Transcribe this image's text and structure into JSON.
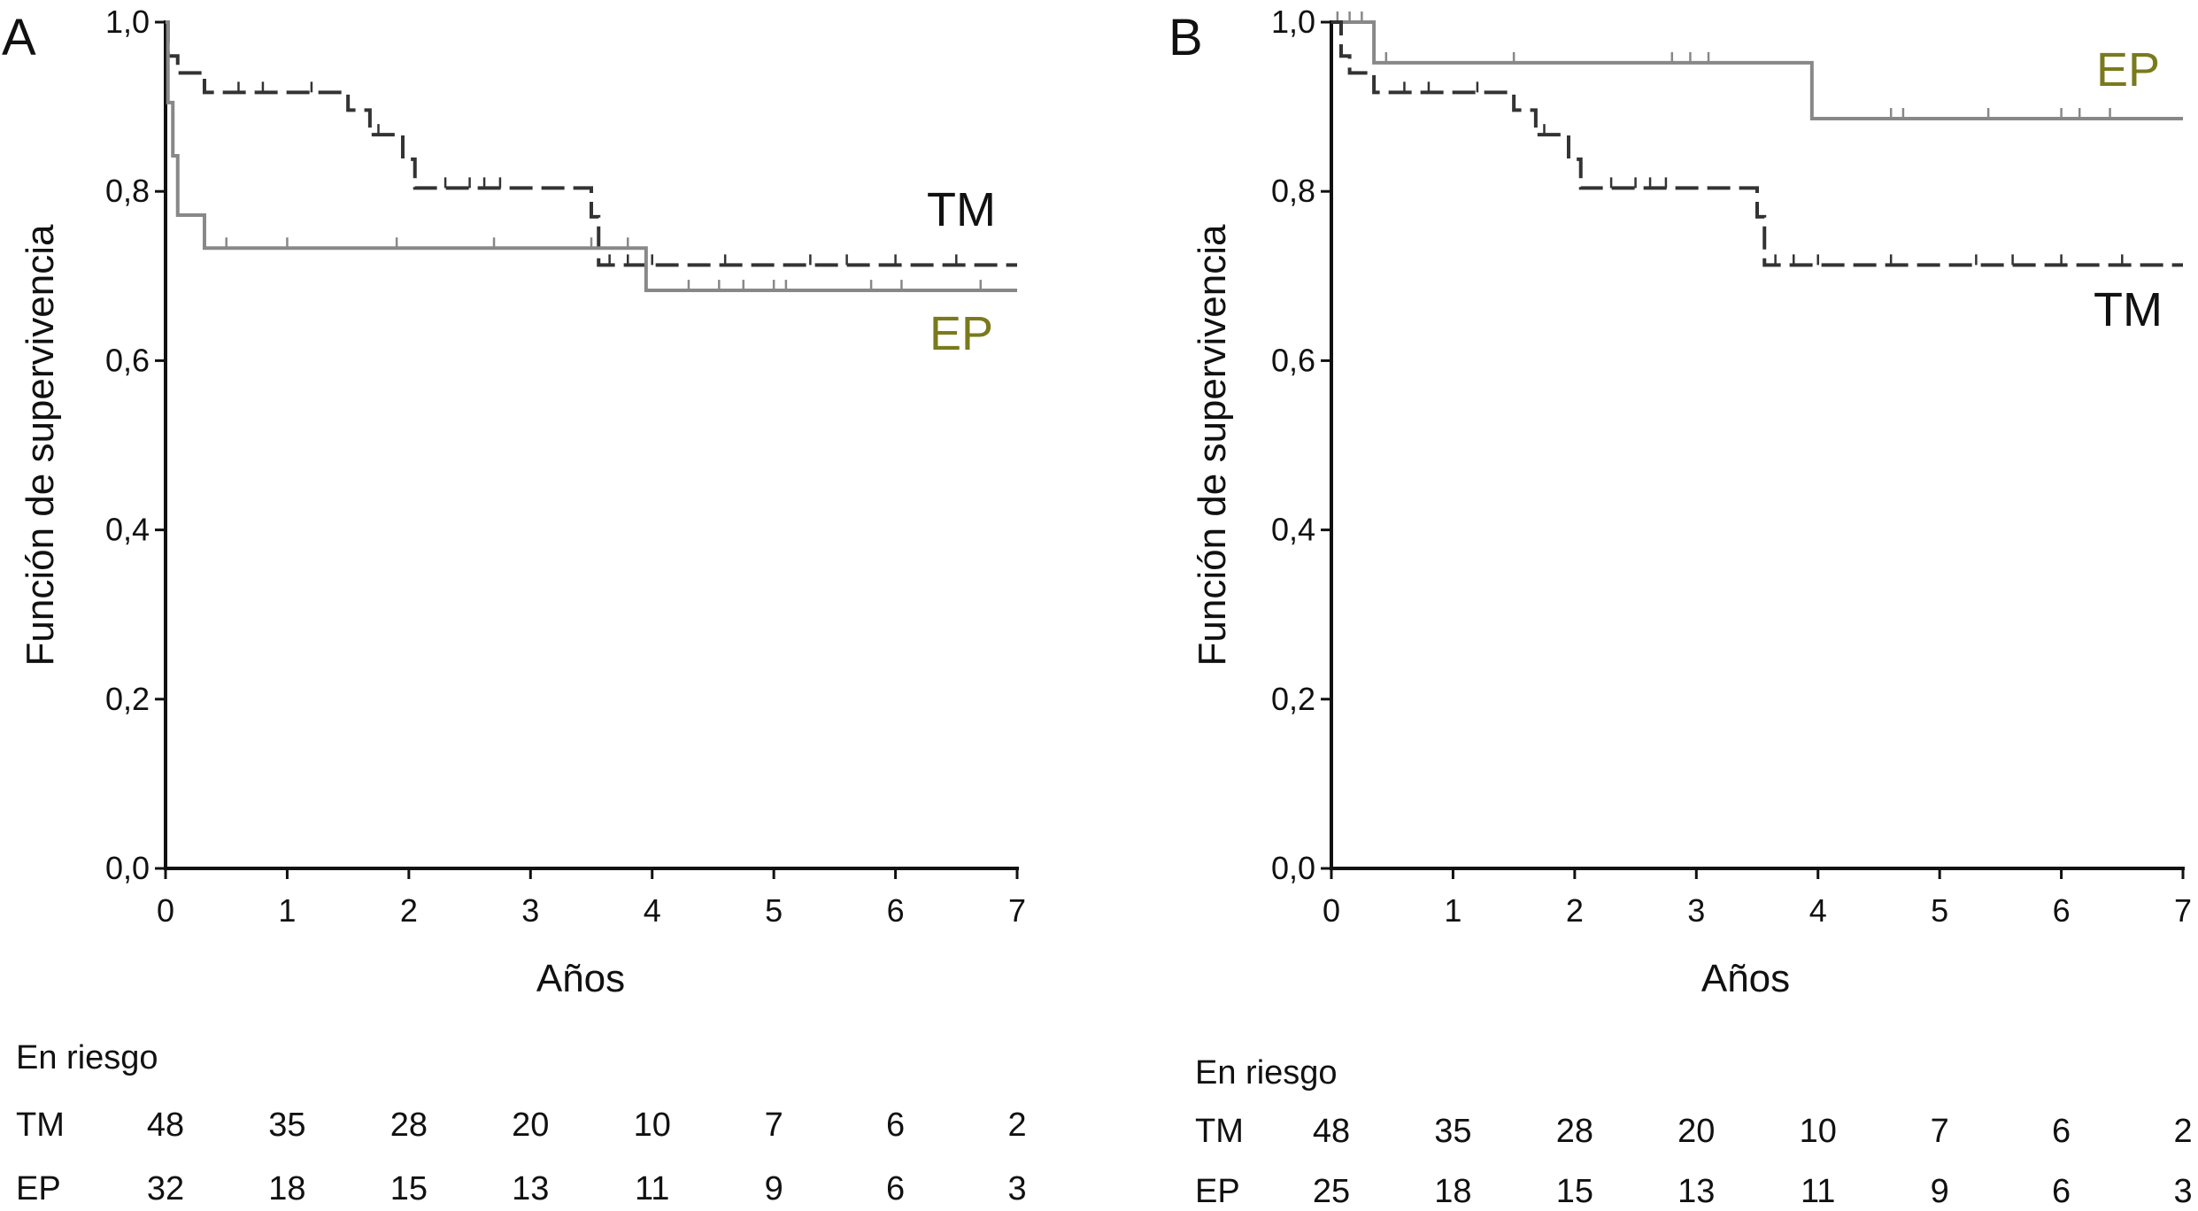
{
  "chart_data": [
    {
      "type": "line",
      "panel_letter": "A",
      "xlabel": "Años",
      "ylabel": "Función de supervivencia",
      "xlim": [
        0,
        7
      ],
      "ylim": [
        0,
        1
      ],
      "x_ticks": [
        0,
        1,
        2,
        3,
        4,
        5,
        6,
        7
      ],
      "x_tick_labels": [
        "0",
        "1",
        "2",
        "3",
        "4",
        "5",
        "6",
        "7"
      ],
      "y_ticks": [
        0,
        0.2,
        0.4,
        0.6,
        0.8,
        1.0
      ],
      "y_tick_labels": [
        "0,0",
        "0,2",
        "0,4",
        "0,6",
        "0,8",
        "1,0"
      ],
      "grid": false,
      "series": [
        {
          "name": "TM",
          "label_color": "#111111",
          "line_color": "#333333",
          "dash": "dashed",
          "steps": [
            [
              0,
              1.0
            ],
            [
              0.02,
              0.96
            ],
            [
              0.1,
              0.94
            ],
            [
              0.32,
              0.917
            ],
            [
              1.5,
              0.896
            ],
            [
              1.68,
              0.867
            ],
            [
              1.95,
              0.838
            ],
            [
              2.05,
              0.804
            ],
            [
              3.5,
              0.77
            ],
            [
              3.56,
              0.713
            ],
            [
              7,
              0.713
            ]
          ],
          "censor_x": [
            0.6,
            0.8,
            1.2,
            1.75,
            2.3,
            2.5,
            2.62,
            2.75,
            3.65,
            3.8,
            4.0,
            4.6,
            5.3,
            5.6,
            6.0,
            6.5
          ]
        },
        {
          "name": "EP",
          "label_color": "#7a7a1c",
          "line_color": "#888888",
          "dash": "solid",
          "steps": [
            [
              0,
              1.0
            ],
            [
              0.02,
              0.905
            ],
            [
              0.06,
              0.842
            ],
            [
              0.1,
              0.772
            ],
            [
              0.32,
              0.733
            ],
            [
              3.95,
              0.683
            ],
            [
              7,
              0.683
            ]
          ],
          "censor_x": [
            0.5,
            1.0,
            1.9,
            2.7,
            3.5,
            3.8,
            4.3,
            4.55,
            4.75,
            5.0,
            5.1,
            5.8,
            6.05,
            6.7
          ]
        }
      ],
      "at_risk": {
        "title": "En riesgo",
        "rows": [
          {
            "label": "TM",
            "values": [
              "48",
              "35",
              "28",
              "20",
              "10",
              "7",
              "6",
              "2"
            ]
          },
          {
            "label": "EP",
            "values": [
              "32",
              "18",
              "15",
              "13",
              "11",
              "9",
              "6",
              "3"
            ]
          }
        ]
      }
    },
    {
      "type": "line",
      "panel_letter": "B",
      "xlabel": "Años",
      "ylabel": "Función de supervivencia",
      "xlim": [
        0,
        7
      ],
      "ylim": [
        0,
        1
      ],
      "x_ticks": [
        0,
        1,
        2,
        3,
        4,
        5,
        6,
        7
      ],
      "x_tick_labels": [
        "0",
        "1",
        "2",
        "3",
        "4",
        "5",
        "6",
        "7"
      ],
      "y_ticks": [
        0,
        0.2,
        0.4,
        0.6,
        0.8,
        1.0
      ],
      "y_tick_labels": [
        "0,0",
        "0,2",
        "0,4",
        "0,6",
        "0,8",
        "1,0"
      ],
      "grid": false,
      "series": [
        {
          "name": "EP",
          "label_color": "#7a7a1c",
          "line_color": "#888888",
          "dash": "solid",
          "steps": [
            [
              0,
              1.0
            ],
            [
              0.35,
              0.952
            ],
            [
              3.95,
              0.886
            ],
            [
              7,
              0.886
            ]
          ],
          "censor_x": [
            0.05,
            0.15,
            0.25,
            0.45,
            1.5,
            2.8,
            2.95,
            3.1,
            4.6,
            4.7,
            5.4,
            6.0,
            6.15,
            6.4
          ]
        },
        {
          "name": "TM",
          "label_color": "#111111",
          "line_color": "#333333",
          "dash": "dashed",
          "steps": [
            [
              0,
              1.0
            ],
            [
              0.08,
              0.96
            ],
            [
              0.15,
              0.94
            ],
            [
              0.35,
              0.917
            ],
            [
              1.5,
              0.896
            ],
            [
              1.68,
              0.867
            ],
            [
              1.95,
              0.838
            ],
            [
              2.05,
              0.804
            ],
            [
              3.5,
              0.77
            ],
            [
              3.56,
              0.713
            ],
            [
              7,
              0.713
            ]
          ],
          "censor_x": [
            0.6,
            0.8,
            1.2,
            1.75,
            2.3,
            2.5,
            2.62,
            2.75,
            3.65,
            3.8,
            4.0,
            4.6,
            5.3,
            5.6,
            6.0,
            6.5
          ]
        }
      ],
      "at_risk": {
        "title": "En riesgo",
        "rows": [
          {
            "label": "TM",
            "values": [
              "48",
              "35",
              "28",
              "20",
              "10",
              "7",
              "6",
              "2"
            ]
          },
          {
            "label": "EP",
            "values": [
              "25",
              "18",
              "15",
              "13",
              "11",
              "9",
              "6",
              "3"
            ]
          }
        ]
      }
    }
  ]
}
